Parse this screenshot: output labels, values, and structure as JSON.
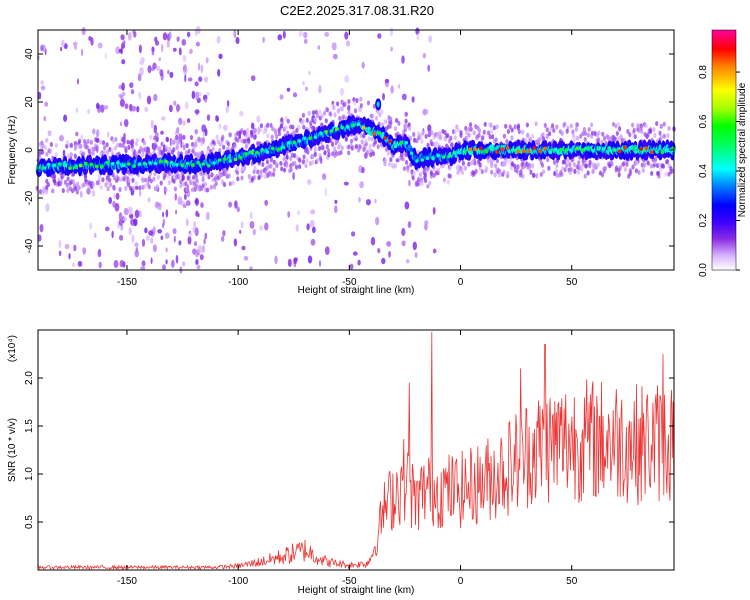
{
  "title": "C2E2.2025.317.08.31.R20",
  "chart_data": [
    {
      "type": "heatmap",
      "name": "spectrogram",
      "xlabel": "Height of straight line (km)",
      "ylabel": "Frequency (Hz)",
      "xlim": [
        -190,
        96
      ],
      "ylim": [
        -50,
        50
      ],
      "xticks": [
        -150,
        -100,
        -50,
        0,
        50
      ],
      "yticks": [
        -40,
        -20,
        0,
        20,
        40
      ],
      "ridge": {
        "x": [
          -190,
          -170,
          -150,
          -130,
          -115,
          -100,
          -85,
          -70,
          -60,
          -50,
          -45,
          -40,
          -35,
          -30,
          -27,
          -25,
          -20,
          -15,
          -10,
          -5,
          0,
          10,
          20,
          30,
          40,
          50,
          60,
          70,
          80,
          96
        ],
        "y": [
          -7,
          -6.5,
          -6,
          -5.5,
          -6,
          -3,
          0,
          4,
          7,
          10,
          11,
          8,
          6,
          2,
          2,
          3,
          -4,
          -3,
          -3,
          -3,
          0,
          0,
          0,
          0,
          0,
          0,
          0,
          0,
          0,
          0
        ]
      },
      "colorbar": {
        "label": "Normalized spectral amplitude",
        "ticks": [
          "0.0",
          "0.2",
          "0.4",
          "0.6",
          "0.8"
        ],
        "range": [
          0,
          0.97
        ]
      }
    },
    {
      "type": "line",
      "name": "snr",
      "xlabel": "Height of straight line (km)",
      "ylabel": "SNR (10 * v/v)",
      "scale_label": "(x10⁴)",
      "xlim": [
        -190,
        96
      ],
      "ylim": [
        0,
        2.5
      ],
      "xticks": [
        -150,
        -100,
        -50,
        0,
        50
      ],
      "yticks": [
        "0.5",
        "1.0",
        "1.5",
        "2.0"
      ],
      "color": "#ee3333",
      "envelope": {
        "x": [
          -190,
          -110,
          -100,
          -90,
          -80,
          -70,
          -60,
          -50,
          -42,
          -38,
          -35,
          -30,
          -25,
          -20,
          -15,
          -10,
          -5,
          0,
          10,
          20,
          30,
          40,
          50,
          60,
          70,
          80,
          96
        ],
        "y": [
          0.04,
          0.04,
          0.06,
          0.12,
          0.2,
          0.3,
          0.12,
          0.07,
          0.1,
          0.3,
          0.7,
          0.9,
          1.1,
          0.8,
          1.0,
          0.95,
          0.95,
          0.95,
          1.05,
          1.2,
          1.4,
          1.5,
          1.55,
          1.55,
          1.55,
          1.5,
          1.55
        ]
      },
      "spikes": [
        {
          "x": -23,
          "y": 1.95
        },
        {
          "x": -13,
          "y": 2.48
        },
        {
          "x": 27,
          "y": 2.1
        },
        {
          "x": 38,
          "y": 2.35
        },
        {
          "x": 91,
          "y": 2.25
        }
      ]
    }
  ]
}
